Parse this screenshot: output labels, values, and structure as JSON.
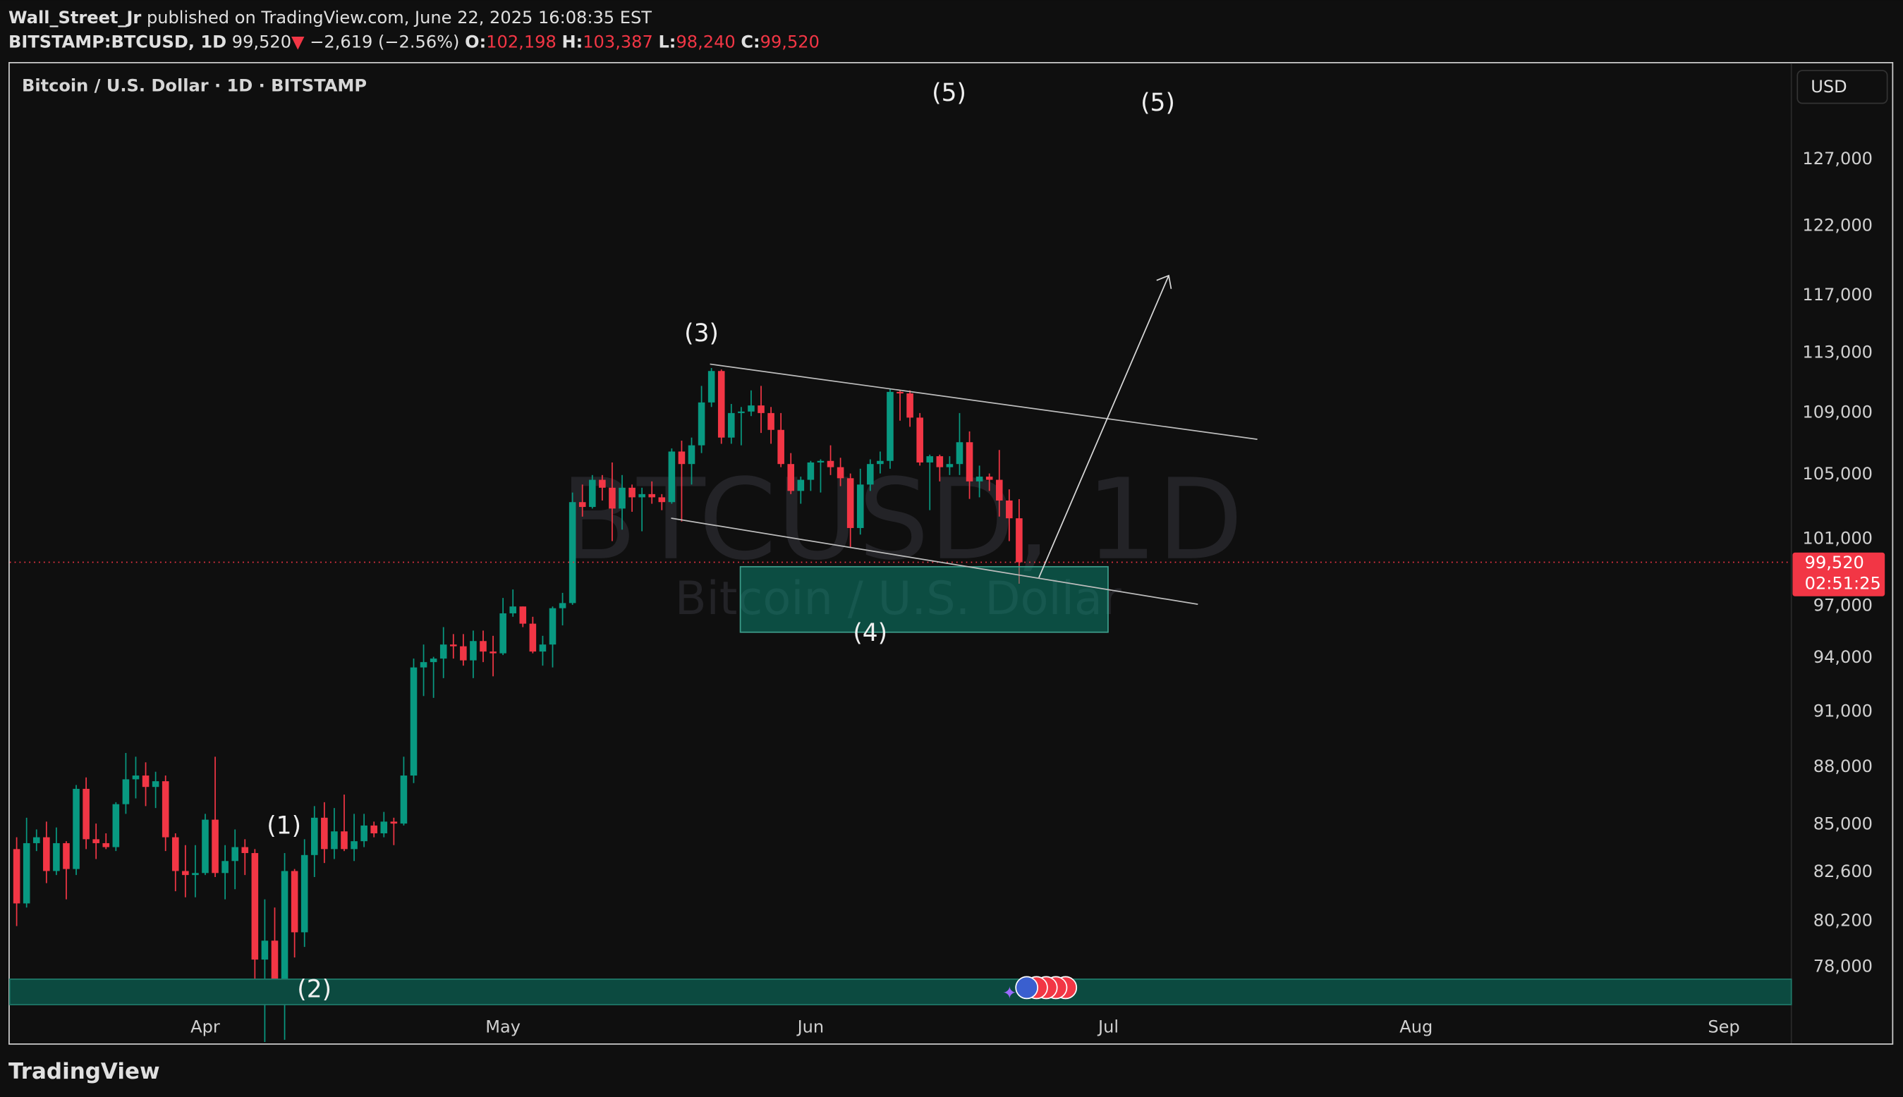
{
  "header": {
    "author": "Wall_Street_Jr",
    "published": "published on TradingView.com, June 22, 2025 16:08:35 EST",
    "symbol": "BITSTAMP:BTCUSD, 1D",
    "last": "99,520",
    "arrow": "▼",
    "change": "−2,619 (−2.56%)",
    "open_label": "O:",
    "open": "102,198",
    "high_label": "H:",
    "high": "103,387",
    "low_label": "L:",
    "low": "98,240",
    "close_label": "C:",
    "close": "99,520"
  },
  "chart": {
    "type": "candlestick",
    "description": "Bitcoin / U.S. Dollar · 1D · BITSTAMP",
    "currency": "USD",
    "watermark": "BTCUSD, 1D",
    "watermark_sub": "Bitcoin / U.S. Dollar",
    "log": true,
    "grid": false,
    "up_color": "#089981",
    "down_color": "#f23645",
    "ylim": [
      76200,
      134500
    ],
    "yticks": [
      {
        "value": 127000,
        "label": "127,000"
      },
      {
        "value": 122000,
        "label": "122,000"
      },
      {
        "value": 117000,
        "label": "117,000"
      },
      {
        "value": 113000,
        "label": "113,000"
      },
      {
        "value": 109000,
        "label": "109,000"
      },
      {
        "value": 105000,
        "label": "105,000"
      },
      {
        "value": 101000,
        "label": "101,000"
      },
      {
        "value": 97000,
        "label": "97,000"
      },
      {
        "value": 94000,
        "label": "94,000"
      },
      {
        "value": 91000,
        "label": "91,000"
      },
      {
        "value": 88000,
        "label": "88,000"
      },
      {
        "value": 85000,
        "label": "85,000"
      },
      {
        "value": 82600,
        "label": "82,600"
      },
      {
        "value": 80200,
        "label": "80,200"
      },
      {
        "value": 78000,
        "label": "78,000"
      }
    ],
    "xlim": [
      -0.7,
      178.8
    ],
    "xticks": [
      {
        "value": 19,
        "label": "Apr"
      },
      {
        "value": 49,
        "label": "May"
      },
      {
        "value": 80,
        "label": "Jun"
      },
      {
        "value": 110,
        "label": "Jul"
      },
      {
        "value": 141,
        "label": "Aug"
      },
      {
        "value": 172,
        "label": "Sep"
      }
    ],
    "price_tag": {
      "value": 99520,
      "label": "99,520"
    },
    "countdown": "02:51:25",
    "annotations": [
      "(1)",
      "(2)",
      "(3)",
      "(4)",
      "(5)",
      "(5)"
    ],
    "candles": [
      [
        83700,
        84300,
        79900,
        81000
      ],
      [
        81000,
        85300,
        80800,
        84000
      ],
      [
        84000,
        84700,
        83600,
        84300
      ],
      [
        84300,
        85100,
        82000,
        82600
      ],
      [
        82600,
        84800,
        82400,
        84000
      ],
      [
        84000,
        84100,
        81200,
        82700
      ],
      [
        82700,
        87000,
        82400,
        86800
      ],
      [
        86800,
        87400,
        83700,
        84200
      ],
      [
        84200,
        85000,
        83200,
        84000
      ],
      [
        84000,
        84500,
        83700,
        83800
      ],
      [
        83800,
        86100,
        83600,
        86000
      ],
      [
        86000,
        88700,
        85500,
        87300
      ],
      [
        87300,
        88500,
        86300,
        87500
      ],
      [
        87500,
        88200,
        85900,
        86900
      ],
      [
        86900,
        87700,
        85800,
        87200
      ],
      [
        87200,
        87500,
        83600,
        84300
      ],
      [
        84300,
        84500,
        81600,
        82600
      ],
      [
        82600,
        83900,
        81300,
        82400
      ],
      [
        82400,
        83900,
        81300,
        82500
      ],
      [
        82500,
        85500,
        82400,
        85200
      ],
      [
        85200,
        88500,
        82300,
        82500
      ],
      [
        82500,
        83900,
        81200,
        83100
      ],
      [
        83100,
        84700,
        81700,
        83800
      ],
      [
        83800,
        84200,
        82400,
        83500
      ],
      [
        83500,
        83700,
        77200,
        78300
      ],
      [
        78300,
        81200,
        74500,
        79200
      ],
      [
        79200,
        80800,
        76200,
        76300
      ],
      [
        76300,
        83500,
        74600,
        82600
      ],
      [
        82600,
        82700,
        78400,
        79600
      ],
      [
        79600,
        84200,
        78900,
        83400
      ],
      [
        83400,
        85900,
        82300,
        85300
      ],
      [
        85300,
        86100,
        83000,
        83700
      ],
      [
        83700,
        85800,
        83200,
        84600
      ],
      [
        84600,
        86500,
        83600,
        83700
      ],
      [
        83700,
        85500,
        83100,
        84100
      ],
      [
        84100,
        85500,
        83800,
        84900
      ],
      [
        84900,
        85100,
        84300,
        84500
      ],
      [
        84500,
        85600,
        84300,
        85100
      ],
      [
        85100,
        85300,
        83900,
        85000
      ],
      [
        85000,
        88500,
        84900,
        87500
      ],
      [
        87500,
        93900,
        87100,
        93400
      ],
      [
        93400,
        94700,
        91800,
        93700
      ],
      [
        93700,
        94000,
        91700,
        93900
      ],
      [
        93900,
        95700,
        92800,
        94700
      ],
      [
        94700,
        95300,
        93900,
        94600
      ],
      [
        94600,
        95300,
        93500,
        93800
      ],
      [
        93800,
        95500,
        92800,
        94900
      ],
      [
        94900,
        95500,
        93700,
        94300
      ],
      [
        94300,
        95200,
        92900,
        94200
      ],
      [
        94200,
        97400,
        94100,
        96500
      ],
      [
        96500,
        97900,
        96300,
        96900
      ],
      [
        96900,
        96900,
        95700,
        95900
      ],
      [
        95900,
        96300,
        94200,
        94300
      ],
      [
        94300,
        95200,
        93500,
        94700
      ],
      [
        94700,
        96900,
        93400,
        96800
      ],
      [
        96800,
        97700,
        95800,
        97100
      ],
      [
        97100,
        103800,
        97000,
        103200
      ],
      [
        103200,
        104300,
        102300,
        102900
      ],
      [
        102900,
        104900,
        102800,
        104600
      ],
      [
        104600,
        104900,
        103300,
        104100
      ],
      [
        104100,
        105700,
        100800,
        102800
      ],
      [
        102800,
        104900,
        101500,
        104100
      ],
      [
        104100,
        104300,
        102600,
        103500
      ],
      [
        103500,
        104100,
        101400,
        103700
      ],
      [
        103700,
        104500,
        103100,
        103500
      ],
      [
        103500,
        103700,
        102700,
        103200
      ],
      [
        103200,
        106600,
        103100,
        106400
      ],
      [
        106400,
        107100,
        102000,
        105600
      ],
      [
        105600,
        107300,
        104300,
        106800
      ],
      [
        106800,
        110700,
        106300,
        109600
      ],
      [
        109600,
        111900,
        109300,
        111700
      ],
      [
        111700,
        111800,
        106900,
        107300
      ],
      [
        107300,
        109500,
        106900,
        108900
      ],
      [
        108900,
        109300,
        106800,
        109000
      ],
      [
        109000,
        110400,
        108700,
        109400
      ],
      [
        109400,
        110700,
        107600,
        108900
      ],
      [
        108900,
        109300,
        106900,
        107800
      ],
      [
        107800,
        108900,
        105400,
        105600
      ],
      [
        105600,
        106300,
        103700,
        103900
      ],
      [
        103900,
        104800,
        103100,
        104600
      ],
      [
        104600,
        105800,
        103900,
        105700
      ],
      [
        105700,
        105900,
        103800,
        105800
      ],
      [
        105800,
        106800,
        104900,
        105400
      ],
      [
        105400,
        106000,
        104200,
        104700
      ],
      [
        104700,
        105000,
        100400,
        101600
      ],
      [
        101600,
        105300,
        101200,
        104300
      ],
      [
        104300,
        105900,
        103900,
        105600
      ],
      [
        105600,
        106400,
        105000,
        105800
      ],
      [
        105800,
        110500,
        105300,
        110300
      ],
      [
        110300,
        110400,
        108400,
        110200
      ],
      [
        110200,
        110400,
        108000,
        108600
      ],
      [
        108600,
        108900,
        105500,
        105700
      ],
      [
        105700,
        106200,
        102700,
        106100
      ],
      [
        106100,
        106200,
        104500,
        105400
      ],
      [
        105400,
        106100,
        104900,
        105600
      ],
      [
        105600,
        108900,
        104900,
        107000
      ],
      [
        107000,
        107700,
        103400,
        104500
      ],
      [
        104500,
        105500,
        103500,
        104800
      ],
      [
        104800,
        105000,
        103900,
        104600
      ],
      [
        104600,
        106500,
        102300,
        103300
      ],
      [
        103300,
        104000,
        100800,
        102198
      ],
      [
        102198,
        103387,
        98240,
        99520
      ]
    ]
  },
  "footer": {
    "brand": "TradingView"
  }
}
